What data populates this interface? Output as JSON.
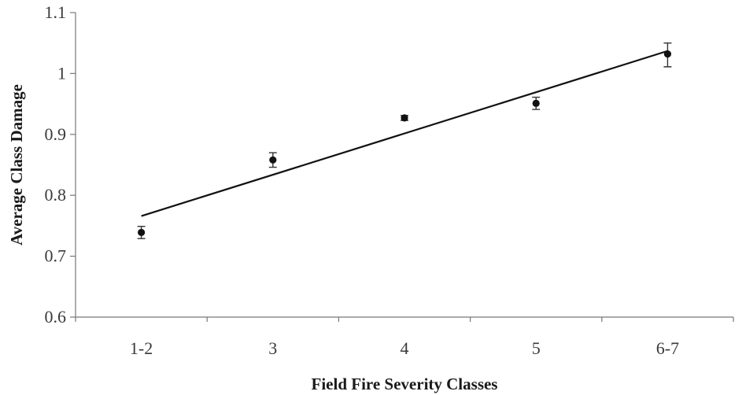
{
  "chart_data": {
    "type": "scatter",
    "title": "",
    "xlabel": "Field Fire Severity Classes",
    "ylabel": "Average Class Damage",
    "categories": [
      "1-2",
      "3",
      "4",
      "5",
      "6-7"
    ],
    "series": [
      {
        "values": [
          0.739,
          0.858,
          0.927,
          0.951,
          1.032
        ],
        "error_low": [
          0.729,
          0.846,
          0.923,
          0.941,
          1.011
        ],
        "error_high": [
          0.749,
          0.87,
          0.931,
          0.961,
          1.05
        ]
      }
    ],
    "trendline": {
      "type": "linear",
      "start": 0.766,
      "end": 1.037
    },
    "ylim": [
      0.6,
      1.1
    ],
    "yticks": [
      "0.6",
      "0.7",
      "0.8",
      "0.9",
      "1",
      "1.1"
    ],
    "grid": false,
    "legend": "none"
  }
}
